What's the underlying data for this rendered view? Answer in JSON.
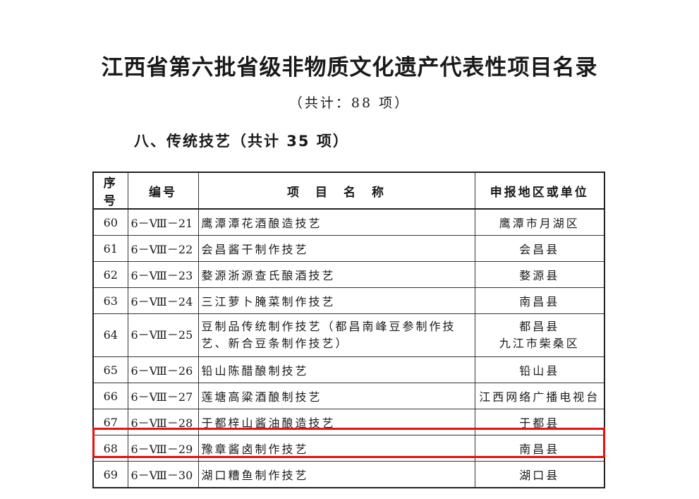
{
  "document": {
    "title": "江西省第六批省级非物质文化遗产代表性项目名录",
    "subtitle": "（共计：88 项）",
    "section_heading": "八、传统技艺（共计 35 项）"
  },
  "table": {
    "headers": [
      "序号",
      "编号",
      "项　目　名　称",
      "申报地区或单位"
    ],
    "rows": [
      {
        "no": "60",
        "code": "6－Ⅷ－21",
        "name": "鹰潭潭花酒酿造技艺",
        "area": "鹰潭市月湖区"
      },
      {
        "no": "61",
        "code": "6－Ⅷ－22",
        "name": "会昌酱干制作技艺",
        "area": "会昌县"
      },
      {
        "no": "62",
        "code": "6－Ⅷ－23",
        "name": "婺源浙源查氏酿酒技艺",
        "area": "婺源县"
      },
      {
        "no": "63",
        "code": "6－Ⅷ－24",
        "name": "三江萝卜腌菜制作技艺",
        "area": "南昌县"
      },
      {
        "no": "64",
        "code": "6－Ⅷ－25",
        "name": "豆制品传统制作技艺（都昌南峰豆参制作技艺、新合豆条制作技艺）",
        "area": "都昌县",
        "area2": "九江市柴桑区"
      },
      {
        "no": "65",
        "code": "6－Ⅷ－26",
        "name": "铅山陈醋酿制技艺",
        "area": "铅山县"
      },
      {
        "no": "66",
        "code": "6－Ⅷ－27",
        "name": "莲塘高粱酒酿制技艺",
        "area": "江西网络广播电视台"
      },
      {
        "no": "67",
        "code": "6－Ⅷ－28",
        "name": "于都梓山酱油酿造技艺",
        "area": "于都县"
      },
      {
        "no": "68",
        "code": "6－Ⅷ－29",
        "name": "豫章酱卤制作技艺",
        "area": "南昌县"
      },
      {
        "no": "69",
        "code": "6－Ⅷ－30",
        "name": "湖口糟鱼制作技艺",
        "area": "湖口县"
      }
    ]
  },
  "highlight": {
    "row_no": "68",
    "color": "#e8100f"
  }
}
